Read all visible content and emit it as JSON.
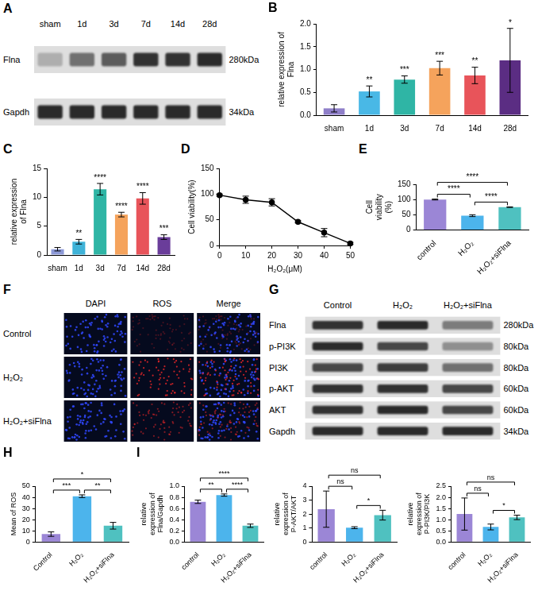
{
  "western_blots": [
    {
      "panel": "A",
      "lanes": [
        "sham",
        "1d",
        "3d",
        "7d",
        "14d",
        "28d"
      ],
      "rows": [
        {
          "label": "Flna",
          "size": "280kDa",
          "intensity": [
            0.25,
            0.55,
            0.65,
            0.85,
            0.85,
            0.9
          ]
        },
        {
          "label": "Gapdh",
          "size": "34kDa",
          "intensity": [
            0.9,
            0.9,
            0.9,
            0.9,
            0.9,
            0.9
          ]
        }
      ]
    },
    {
      "panel": "G",
      "lanes": [
        "Control",
        "H₂O₂",
        "H₂O₂+siFlna"
      ],
      "rows": [
        {
          "label": "Flna",
          "size": "280kDa",
          "intensity": [
            0.85,
            0.9,
            0.5
          ]
        },
        {
          "label": "p-PI3K",
          "size": "80kDa",
          "intensity": [
            0.9,
            0.75,
            0.4
          ]
        },
        {
          "label": "PI3K",
          "size": "80kDa",
          "intensity": [
            0.75,
            0.8,
            0.55
          ]
        },
        {
          "label": "p-AKT",
          "size": "60kDa",
          "intensity": [
            0.85,
            0.85,
            0.75
          ]
        },
        {
          "label": "AKT",
          "size": "60kDa",
          "intensity": [
            0.85,
            0.9,
            0.75
          ]
        },
        {
          "label": "Gapdh",
          "size": "34kDa",
          "intensity": [
            0.9,
            0.9,
            0.9
          ]
        }
      ]
    }
  ],
  "micrographs": {
    "panel": "F",
    "columns": [
      "DAPI",
      "ROS",
      "Merge"
    ],
    "rows": [
      "Control",
      "H₂O₂",
      "H₂O₂+siFlna"
    ],
    "ros_intensity": [
      0.25,
      0.75,
      0.5
    ]
  },
  "chart_data": [
    {
      "panel": "B",
      "type": "bar",
      "y_label": "relative expression of Flna",
      "categories": [
        "sham",
        "1d",
        "3d",
        "7d",
        "14d",
        "28d"
      ],
      "values": [
        0.15,
        0.52,
        0.78,
        1.03,
        0.87,
        1.2
      ],
      "errors": [
        0.08,
        0.12,
        0.08,
        0.15,
        0.18,
        0.7
      ],
      "annotations": [
        null,
        "**",
        "***",
        "***",
        "**",
        "*"
      ],
      "colors": [
        "#8f7fc9",
        "#49b8e6",
        "#2fb5a5",
        "#f5a35c",
        "#e8545a",
        "#5b2d83"
      ],
      "ylim": [
        0,
        2
      ],
      "yticks": [
        {
          "value": 0,
          "label": "0.0"
        },
        0.5,
        {
          "value": 1,
          "label": "1.0"
        },
        1.5,
        {
          "value": 2,
          "label": "2.0"
        }
      ],
      "grid": false
    },
    {
      "panel": "C",
      "type": "bar",
      "y_label": "relative expression of Flna",
      "categories": [
        "sham",
        "1d",
        "3d",
        "7d",
        "14d",
        "28d"
      ],
      "values": [
        1.0,
        2.3,
        11.4,
        7.0,
        9.8,
        3.1
      ],
      "errors": [
        0.3,
        0.4,
        1.0,
        0.4,
        1.0,
        0.4
      ],
      "annotations": [
        null,
        "**",
        "****",
        "****",
        "****",
        "***"
      ],
      "colors": [
        "#8d9ad8",
        "#3fb3d8",
        "#2fb5a5",
        "#f5a35c",
        "#e8545a",
        "#6a3d9a"
      ],
      "ylim": [
        0,
        15
      ],
      "yticks": [
        0,
        5,
        10,
        15
      ],
      "grid": false
    },
    {
      "panel": "D",
      "type": "line",
      "x_label": "H₂O₂(μM)",
      "y_label": "Cell viability(%)",
      "x": [
        0,
        10,
        20,
        30,
        40,
        50
      ],
      "values": [
        98,
        89,
        84,
        46,
        25,
        4
      ],
      "errors": [
        2,
        7,
        7,
        2,
        8,
        2
      ],
      "color": "#000000",
      "marker": "circle",
      "xlim": [
        0,
        50
      ],
      "xticks": [
        0,
        10,
        20,
        30,
        40,
        50
      ],
      "ylim": [
        0,
        150
      ],
      "yticks": [
        0,
        50,
        100,
        150
      ],
      "grid": false
    },
    {
      "panel": "E",
      "type": "bar",
      "y_label": "Cell viability (%)",
      "categories": [
        "control",
        "H₂O₂",
        "H₂O₂+siFlna"
      ],
      "values": [
        100,
        47,
        75
      ],
      "errors": [
        1.5,
        3,
        1
      ],
      "colors": [
        "#9b86d6",
        "#4cb4ec",
        "#4fc1c0"
      ],
      "comparisons": [
        {
          "from": 0,
          "to": 1,
          "label": "****"
        },
        {
          "from": 1,
          "to": 2,
          "label": "****"
        },
        {
          "from": 0,
          "to": 2,
          "label": "****"
        }
      ],
      "ylim": [
        0,
        150
      ],
      "yticks": [
        0,
        50,
        100,
        150
      ],
      "grid": false
    },
    {
      "panel": "H",
      "type": "bar",
      "y_label": "Mean of ROS",
      "categories": [
        "Control",
        "H₂O₂",
        "H₂O₂+siFlna"
      ],
      "values": [
        7,
        41,
        14.5
      ],
      "errors": [
        2,
        1.2,
        3
      ],
      "colors": [
        "#9b86d6",
        "#4cb4ec",
        "#4fc1c0"
      ],
      "comparisons": [
        {
          "from": 0,
          "to": 1,
          "label": "***"
        },
        {
          "from": 1,
          "to": 2,
          "label": "**"
        },
        {
          "from": 0,
          "to": 2,
          "label": "*"
        }
      ],
      "ylim": [
        0,
        50
      ],
      "yticks": [
        0,
        10,
        20,
        30,
        40,
        50
      ],
      "grid": false
    },
    {
      "panel": "I",
      "type": "bar",
      "y_label": "relative expression of Flna/Gapdh",
      "categories": [
        "control",
        "H₂O₂",
        "H₂O₂+siFlna"
      ],
      "values": [
        0.72,
        0.84,
        0.29
      ],
      "errors": [
        0.03,
        0.02,
        0.03
      ],
      "colors": [
        "#9b86d6",
        "#4cb4ec",
        "#4fc1c0"
      ],
      "comparisons": [
        {
          "from": 0,
          "to": 1,
          "label": "**"
        },
        {
          "from": 1,
          "to": 2,
          "label": "****"
        },
        {
          "from": 0,
          "to": 2,
          "label": "****"
        }
      ],
      "ylim": [
        0,
        1
      ],
      "yticks": [
        {
          "value": 0,
          "label": "0.0"
        },
        0.2,
        0.4,
        0.6,
        0.8,
        {
          "value": 1,
          "label": "1.0"
        }
      ],
      "grid": false
    },
    {
      "type": "bar",
      "y_label": "relative expression of P-AKT/AKT",
      "categories": [
        "control",
        "H₂O₂",
        "H₂O₂+siFlna"
      ],
      "values": [
        2.35,
        1.02,
        1.92
      ],
      "errors": [
        1.3,
        0.07,
        0.35
      ],
      "colors": [
        "#9b86d6",
        "#4cb4ec",
        "#4fc1c0"
      ],
      "comparisons": [
        {
          "from": 0,
          "to": 1,
          "label": "ns"
        },
        {
          "from": 1,
          "to": 2,
          "label": "*"
        },
        {
          "from": 0,
          "to": 2,
          "label": "ns"
        }
      ],
      "ylim": [
        0,
        4
      ],
      "yticks": [
        0,
        1,
        2,
        3,
        4
      ],
      "grid": false
    },
    {
      "type": "bar",
      "y_label": "relative expression of P-PI3K/PI3K",
      "categories": [
        "control",
        "H₂O₂",
        "H₂O₂+siFlna"
      ],
      "values": [
        1.25,
        0.67,
        1.1
      ],
      "errors": [
        0.72,
        0.13,
        0.1
      ],
      "colors": [
        "#9b86d6",
        "#4cb4ec",
        "#4fc1c0"
      ],
      "comparisons": [
        {
          "from": 0,
          "to": 1,
          "label": "ns"
        },
        {
          "from": 1,
          "to": 2,
          "label": "*"
        },
        {
          "from": 0,
          "to": 2,
          "label": "ns"
        }
      ],
      "ylim": [
        0,
        2.5
      ],
      "yticks": [
        {
          "value": 0,
          "label": "0.0"
        },
        0.5,
        {
          "value": 1,
          "label": "1.0"
        },
        1.5,
        {
          "value": 2,
          "label": "2.0"
        },
        2.5
      ],
      "grid": false
    }
  ]
}
